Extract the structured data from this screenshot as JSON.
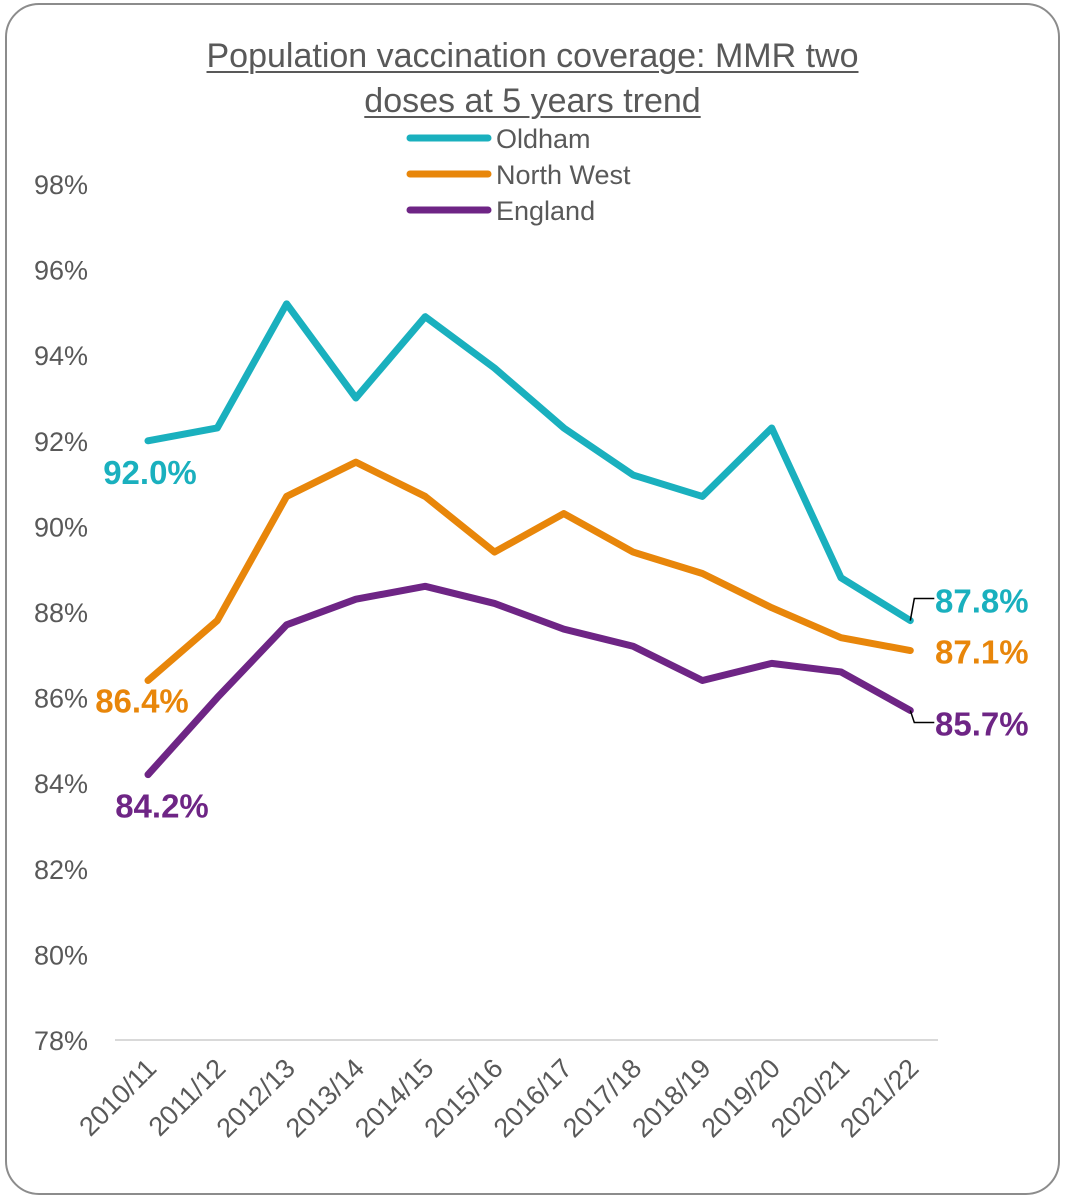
{
  "chart_data": {
    "type": "line",
    "title_line1": "Population vaccination coverage: MMR two",
    "title_line2": "doses at 5 years trend",
    "categories": [
      "2010/11",
      "2011/12",
      "2012/13",
      "2013/14",
      "2014/15",
      "2015/16",
      "2016/17",
      "2017/18",
      "2018/19",
      "2019/20",
      "2020/21",
      "2021/22"
    ],
    "ylim": [
      78,
      98
    ],
    "y_ticks": [
      78,
      80,
      82,
      84,
      86,
      88,
      90,
      92,
      94,
      96,
      98
    ],
    "y_tick_labels": [
      "78%",
      "80%",
      "82%",
      "84%",
      "86%",
      "88%",
      "90%",
      "92%",
      "94%",
      "96%",
      "98%"
    ],
    "legend_position": "top-center",
    "grid": false,
    "series": [
      {
        "name": "Oldham",
        "color": "#1AB0BE",
        "values": [
          92.0,
          92.3,
          95.2,
          93.0,
          94.9,
          93.7,
          92.3,
          91.2,
          90.7,
          92.3,
          88.8,
          87.8
        ],
        "start_label": "92.0%",
        "end_label": "87.8%"
      },
      {
        "name": "North West",
        "color": "#E8860A",
        "values": [
          86.4,
          87.8,
          90.7,
          91.5,
          90.7,
          89.4,
          90.3,
          89.4,
          88.9,
          88.1,
          87.4,
          87.1
        ],
        "start_label": "86.4%",
        "end_label": "87.1%"
      },
      {
        "name": "England",
        "color": "#6E2585",
        "values": [
          84.2,
          86.0,
          87.7,
          88.3,
          88.6,
          88.2,
          87.6,
          87.2,
          86.4,
          86.8,
          86.6,
          85.7
        ],
        "start_label": "84.2%",
        "end_label": "85.7%"
      }
    ]
  }
}
